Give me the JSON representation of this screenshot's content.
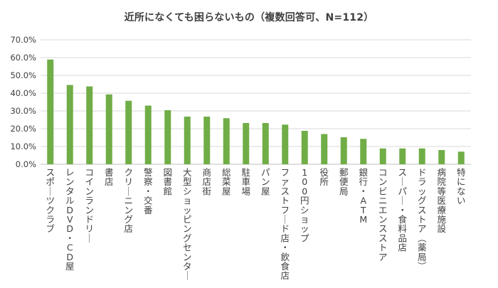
{
  "chart_data": {
    "type": "bar",
    "title": "近所になくても困らないもの（複数回答可、N=112）",
    "xlabel": "",
    "ylabel": "",
    "ylim": [
      0,
      70
    ],
    "yticks": [
      "0.0%",
      "10.0%",
      "20.0%",
      "30.0%",
      "40.0%",
      "50.0%",
      "60.0%",
      "70.0%"
    ],
    "grid": true,
    "legend": "none",
    "bar_color": "#70ad47",
    "categories": [
      "スポーツクラブ",
      "レンタルDVD・CD屋",
      "コインランドリー",
      "書店",
      "クリーニング店",
      "警察・交番",
      "図書館",
      "大型ショッピングセンター",
      "商店街",
      "総菜屋",
      "駐車場",
      "パン屋",
      "ファストフード店・飲食店",
      "100円ショップ",
      "役所",
      "郵便局",
      "銀行・ATM",
      "コンビニエンスストア",
      "スーパー・食料品店",
      "ドラッグストア（薬局）",
      "病院等医療施設",
      "特にない"
    ],
    "values": [
      58.9,
      44.6,
      43.8,
      39.3,
      35.7,
      33.0,
      30.4,
      26.8,
      26.8,
      25.9,
      23.2,
      23.2,
      22.3,
      18.8,
      17.0,
      15.2,
      14.3,
      8.9,
      8.9,
      8.9,
      8.0,
      7.1
    ]
  }
}
